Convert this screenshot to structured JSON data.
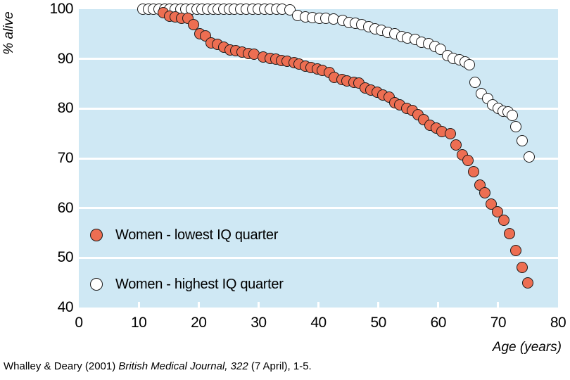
{
  "chart_data": {
    "type": "scatter",
    "title": "",
    "xlabel": "Age (years)",
    "ylabel": "% alive",
    "xlim": [
      0,
      80
    ],
    "ylim": [
      40,
      100
    ],
    "xticks": [
      0,
      10,
      20,
      30,
      40,
      50,
      60,
      70,
      80
    ],
    "yticks": [
      40,
      50,
      60,
      70,
      80,
      90,
      100
    ],
    "grid_values": [
      50,
      60,
      70,
      80,
      90
    ],
    "grid_color": "#ffffff",
    "plot_bg_color": "#cfe8f4",
    "marker_outline_color": "#1a1a1a",
    "legend_position": "lower-left-inside",
    "series": [
      {
        "name": "Women - highest IQ quarter",
        "color": "#ffffff",
        "points": [
          [
            10.7,
            100
          ],
          [
            11.6,
            100
          ],
          [
            12.5,
            100
          ],
          [
            13.4,
            100
          ],
          [
            14.3,
            100
          ],
          [
            15.2,
            100
          ],
          [
            16.1,
            100
          ],
          [
            17.0,
            100
          ],
          [
            17.9,
            100
          ],
          [
            18.8,
            100
          ],
          [
            19.7,
            100
          ],
          [
            20.6,
            100
          ],
          [
            21.5,
            100
          ],
          [
            22.4,
            100
          ],
          [
            23.3,
            100
          ],
          [
            24.2,
            100
          ],
          [
            25.1,
            100
          ],
          [
            26.0,
            100
          ],
          [
            27.0,
            100
          ],
          [
            28.0,
            100
          ],
          [
            29.0,
            100
          ],
          [
            30.0,
            100
          ],
          [
            31.0,
            100
          ],
          [
            32.0,
            100
          ],
          [
            33.0,
            100
          ],
          [
            34.0,
            100
          ],
          [
            35.2,
            99.8
          ],
          [
            36.5,
            98.7
          ],
          [
            37.8,
            98.4
          ],
          [
            39.0,
            98.3
          ],
          [
            40.2,
            98.2
          ],
          [
            41.2,
            98.1
          ],
          [
            42.5,
            98.0
          ],
          [
            44.1,
            97.8
          ],
          [
            45.1,
            97.3
          ],
          [
            46.2,
            97.1
          ],
          [
            47.2,
            96.9
          ],
          [
            48.4,
            96.4
          ],
          [
            49.5,
            96.0
          ],
          [
            50.5,
            95.7
          ],
          [
            51.6,
            95.4
          ],
          [
            52.8,
            95.0
          ],
          [
            53.9,
            94.5
          ],
          [
            54.9,
            94.2
          ],
          [
            56.1,
            93.9
          ],
          [
            57.2,
            93.4
          ],
          [
            58.4,
            93.0
          ],
          [
            59.4,
            92.5
          ],
          [
            60.4,
            92.0
          ],
          [
            61.5,
            90.6
          ],
          [
            62.5,
            90.1
          ],
          [
            63.5,
            89.8
          ],
          [
            64.5,
            89.4
          ],
          [
            65.2,
            88.8
          ],
          [
            66.1,
            85.3
          ],
          [
            67.2,
            83.0
          ],
          [
            68.2,
            82.0
          ],
          [
            69.1,
            80.7
          ],
          [
            70.0,
            80.1
          ],
          [
            70.8,
            79.5
          ],
          [
            71.7,
            79.3
          ],
          [
            72.4,
            78.6
          ],
          [
            73.0,
            76.4
          ],
          [
            74.0,
            73.6
          ],
          [
            75.2,
            70.3
          ]
        ]
      },
      {
        "name": "Women - lowest IQ quarter",
        "color": "#ed6e52",
        "points": [
          [
            14.1,
            99.3
          ],
          [
            15.2,
            98.6
          ],
          [
            16.1,
            98.4
          ],
          [
            17.2,
            98.2
          ],
          [
            18.2,
            98.1
          ],
          [
            19.1,
            96.9
          ],
          [
            20.2,
            95.0
          ],
          [
            21.2,
            94.6
          ],
          [
            22.1,
            93.2
          ],
          [
            23.2,
            92.9
          ],
          [
            24.2,
            92.4
          ],
          [
            25.2,
            91.8
          ],
          [
            26.2,
            91.6
          ],
          [
            27.2,
            91.3
          ],
          [
            28.3,
            91.1
          ],
          [
            29.3,
            90.9
          ],
          [
            30.8,
            90.4
          ],
          [
            31.9,
            90.1
          ],
          [
            32.9,
            89.9
          ],
          [
            33.8,
            89.7
          ],
          [
            34.8,
            89.5
          ],
          [
            35.9,
            89.3
          ],
          [
            36.8,
            88.9
          ],
          [
            37.8,
            88.6
          ],
          [
            38.8,
            88.3
          ],
          [
            39.8,
            88.0
          ],
          [
            40.7,
            87.7
          ],
          [
            41.8,
            87.3
          ],
          [
            42.7,
            86.3
          ],
          [
            43.9,
            85.9
          ],
          [
            44.8,
            85.6
          ],
          [
            45.9,
            85.3
          ],
          [
            46.8,
            85.1
          ],
          [
            47.8,
            84.1
          ],
          [
            48.8,
            83.7
          ],
          [
            49.8,
            83.3
          ],
          [
            50.7,
            82.8
          ],
          [
            51.8,
            82.3
          ],
          [
            52.7,
            81.2
          ],
          [
            53.6,
            80.7
          ],
          [
            54.7,
            80.1
          ],
          [
            55.7,
            79.6
          ],
          [
            56.6,
            78.8
          ],
          [
            57.6,
            77.8
          ],
          [
            58.6,
            76.7
          ],
          [
            59.7,
            76.1
          ],
          [
            60.6,
            75.4
          ],
          [
            62.0,
            75.0
          ],
          [
            63.0,
            72.7
          ],
          [
            64.0,
            70.7
          ],
          [
            65.0,
            69.6
          ],
          [
            65.9,
            67.3
          ],
          [
            67.0,
            64.6
          ],
          [
            67.8,
            63.1
          ],
          [
            68.8,
            60.8
          ],
          [
            69.9,
            59.2
          ],
          [
            71.0,
            57.5
          ],
          [
            71.9,
            54.9
          ],
          [
            73.0,
            51.5
          ],
          [
            74.0,
            48.1
          ],
          [
            75.0,
            45.0
          ]
        ]
      }
    ],
    "legend": [
      {
        "label": "Women - lowest IQ quarter",
        "color": "#ed6e52"
      },
      {
        "label": "Women - highest IQ quarter",
        "color": "#ffffff"
      }
    ]
  },
  "caption": {
    "prefix": "Whalley & Deary (2001) ",
    "italic": "British Medical Journal, 322",
    "suffix": " (7 April), 1-5."
  }
}
